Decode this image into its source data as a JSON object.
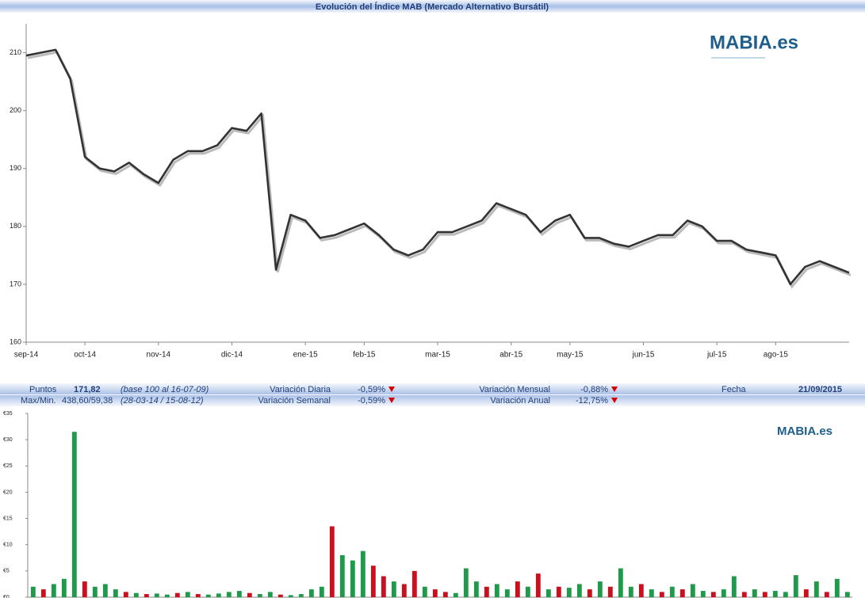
{
  "chart_data": [
    {
      "type": "line",
      "title": "Evolución del Índice MAB (Mercado Alternativo Bursátil)",
      "categories": [
        "sep-14",
        null,
        null,
        null,
        "oct-14",
        null,
        null,
        null,
        null,
        "nov-14",
        null,
        null,
        null,
        null,
        "dic-14",
        null,
        null,
        null,
        null,
        "ene-15",
        null,
        null,
        null,
        "feb-15",
        null,
        null,
        null,
        null,
        "mar-15",
        null,
        null,
        null,
        null,
        "abr-15",
        null,
        null,
        null,
        "may-15",
        null,
        null,
        null,
        null,
        "jun-15",
        null,
        null,
        null,
        null,
        "jul-15",
        null,
        null,
        null,
        "ago-15",
        null,
        null,
        null,
        null,
        null
      ],
      "values": [
        209.5,
        210,
        210.5,
        205.5,
        192,
        190,
        189.5,
        191,
        189,
        187.5,
        191.5,
        193,
        193,
        194,
        197,
        196.5,
        199.5,
        172.5,
        182,
        181,
        178,
        178.5,
        179.5,
        180.5,
        178.5,
        176,
        175,
        176,
        179,
        179,
        180,
        181,
        184,
        183,
        182,
        179,
        181,
        182,
        178,
        178,
        177,
        176.5,
        177.5,
        178.5,
        178.5,
        181,
        180,
        177.5,
        177.5,
        176,
        175.5,
        175,
        170,
        173,
        174,
        173,
        172
      ],
      "color": "#333333",
      "ylim": [
        160,
        215
      ],
      "yticks": [
        160,
        170,
        180,
        190,
        200,
        210
      ]
    },
    {
      "type": "bar",
      "values": [
        2,
        1.5,
        2.5,
        3.5,
        31.5,
        3,
        2,
        2.5,
        1.5,
        1,
        0.8,
        0.6,
        0.7,
        0.5,
        0.8,
        1,
        0.6,
        0.5,
        0.7,
        1,
        1.2,
        0.8,
        0.6,
        1,
        0.5,
        0.4,
        0.6,
        1.5,
        2,
        13.5,
        8,
        7,
        8.8,
        6,
        4,
        3,
        2.5,
        5,
        2,
        1.5,
        1,
        0.8,
        5.5,
        3,
        2,
        2.5,
        1.5,
        3,
        2,
        4.5,
        1.5,
        2,
        1.8,
        2.5,
        1.5,
        3,
        2,
        5.5,
        2,
        2.5,
        1.5,
        1,
        2,
        1.5,
        2.5,
        1.2,
        1,
        1.5,
        4,
        1,
        1.5,
        1,
        1.2,
        1,
        4.2,
        1.5,
        3,
        1,
        3.5,
        1
      ],
      "colors": [
        "g",
        "r",
        "g",
        "g",
        "g",
        "r",
        "g",
        "g",
        "g",
        "r",
        "g",
        "r",
        "g",
        "g",
        "r",
        "g",
        "r",
        "g",
        "g",
        "g",
        "g",
        "r",
        "g",
        "g",
        "r",
        "g",
        "g",
        "g",
        "g",
        "r",
        "g",
        "g",
        "g",
        "r",
        "r",
        "g",
        "r",
        "r",
        "g",
        "r",
        "r",
        "g",
        "g",
        "g",
        "r",
        "g",
        "g",
        "r",
        "g",
        "r",
        "g",
        "r",
        "g",
        "g",
        "r",
        "g",
        "r",
        "g",
        "g",
        "r",
        "g",
        "r",
        "g",
        "r",
        "g",
        "g",
        "r",
        "g",
        "g",
        "r",
        "g",
        "r",
        "g",
        "g",
        "g",
        "r",
        "g",
        "r",
        "g",
        "g"
      ],
      "palette": {
        "g": "#1f9a4b",
        "r": "#c8101e"
      },
      "ylim": [
        0,
        35
      ],
      "yticks": [
        {
          "value": 0,
          "label": "€0"
        },
        {
          "value": 5,
          "label": "€5"
        },
        {
          "value": 10,
          "label": "€10"
        },
        {
          "value": 15,
          "label": "€15"
        },
        {
          "value": 20,
          "label": "€20"
        },
        {
          "value": 25,
          "label": "€25"
        },
        {
          "value": 30,
          "label": "€30"
        },
        {
          "value": 35,
          "label": "€35"
        }
      ]
    }
  ],
  "info": {
    "rows": [
      [
        "Puntos",
        "171,82",
        "(base 100 al 16-07-09)",
        "Variación Diaria",
        "-0,59%",
        "Variación Mensual",
        "-0,88%",
        "Fecha",
        "21/09/2015"
      ],
      [
        "Max/Min.",
        "438,60/59,38",
        "(28-03-14 / 15-08-12)",
        "Variación Semanal",
        "-0,59%",
        "Variación Anual",
        "-12,75%"
      ]
    ]
  },
  "logos": [
    "MABIA.es",
    "MABIA.es"
  ]
}
